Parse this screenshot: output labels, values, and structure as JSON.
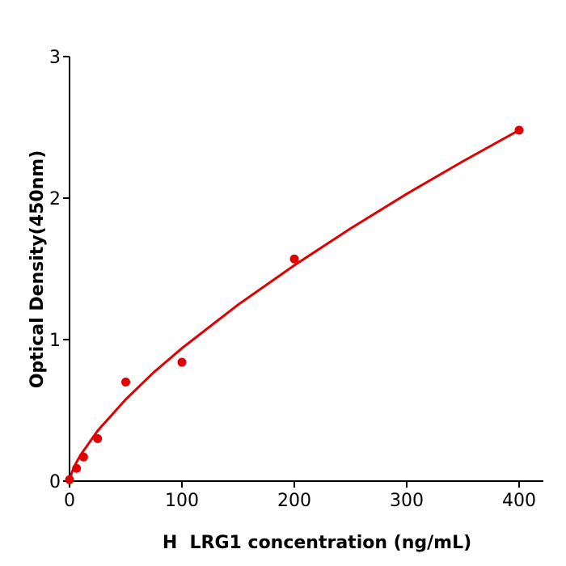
{
  "chart_data": {
    "type": "scatter",
    "title": "",
    "xlabel": "H  LRG1 concentration (ng/mL)",
    "ylabel": "Optical Density(450nm)",
    "xlim": [
      0,
      420
    ],
    "ylim": [
      0,
      3
    ],
    "xticks": [
      0,
      100,
      200,
      300,
      400
    ],
    "yticks": [
      0,
      1,
      2,
      3
    ],
    "grid": false,
    "color": "#e00000",
    "points": {
      "x": [
        0,
        6.25,
        12.5,
        25,
        50,
        100,
        200,
        400
      ],
      "y": [
        0.01,
        0.09,
        0.17,
        0.3,
        0.7,
        0.84,
        1.57,
        2.48
      ]
    },
    "fit_curve": {
      "x": [
        0,
        2,
        5,
        10,
        25,
        50,
        75,
        100,
        150,
        200,
        250,
        300,
        350,
        400
      ],
      "y": [
        0,
        0.06,
        0.116,
        0.187,
        0.356,
        0.578,
        0.77,
        0.939,
        1.247,
        1.525,
        1.785,
        2.03,
        2.26,
        2.48
      ]
    }
  }
}
